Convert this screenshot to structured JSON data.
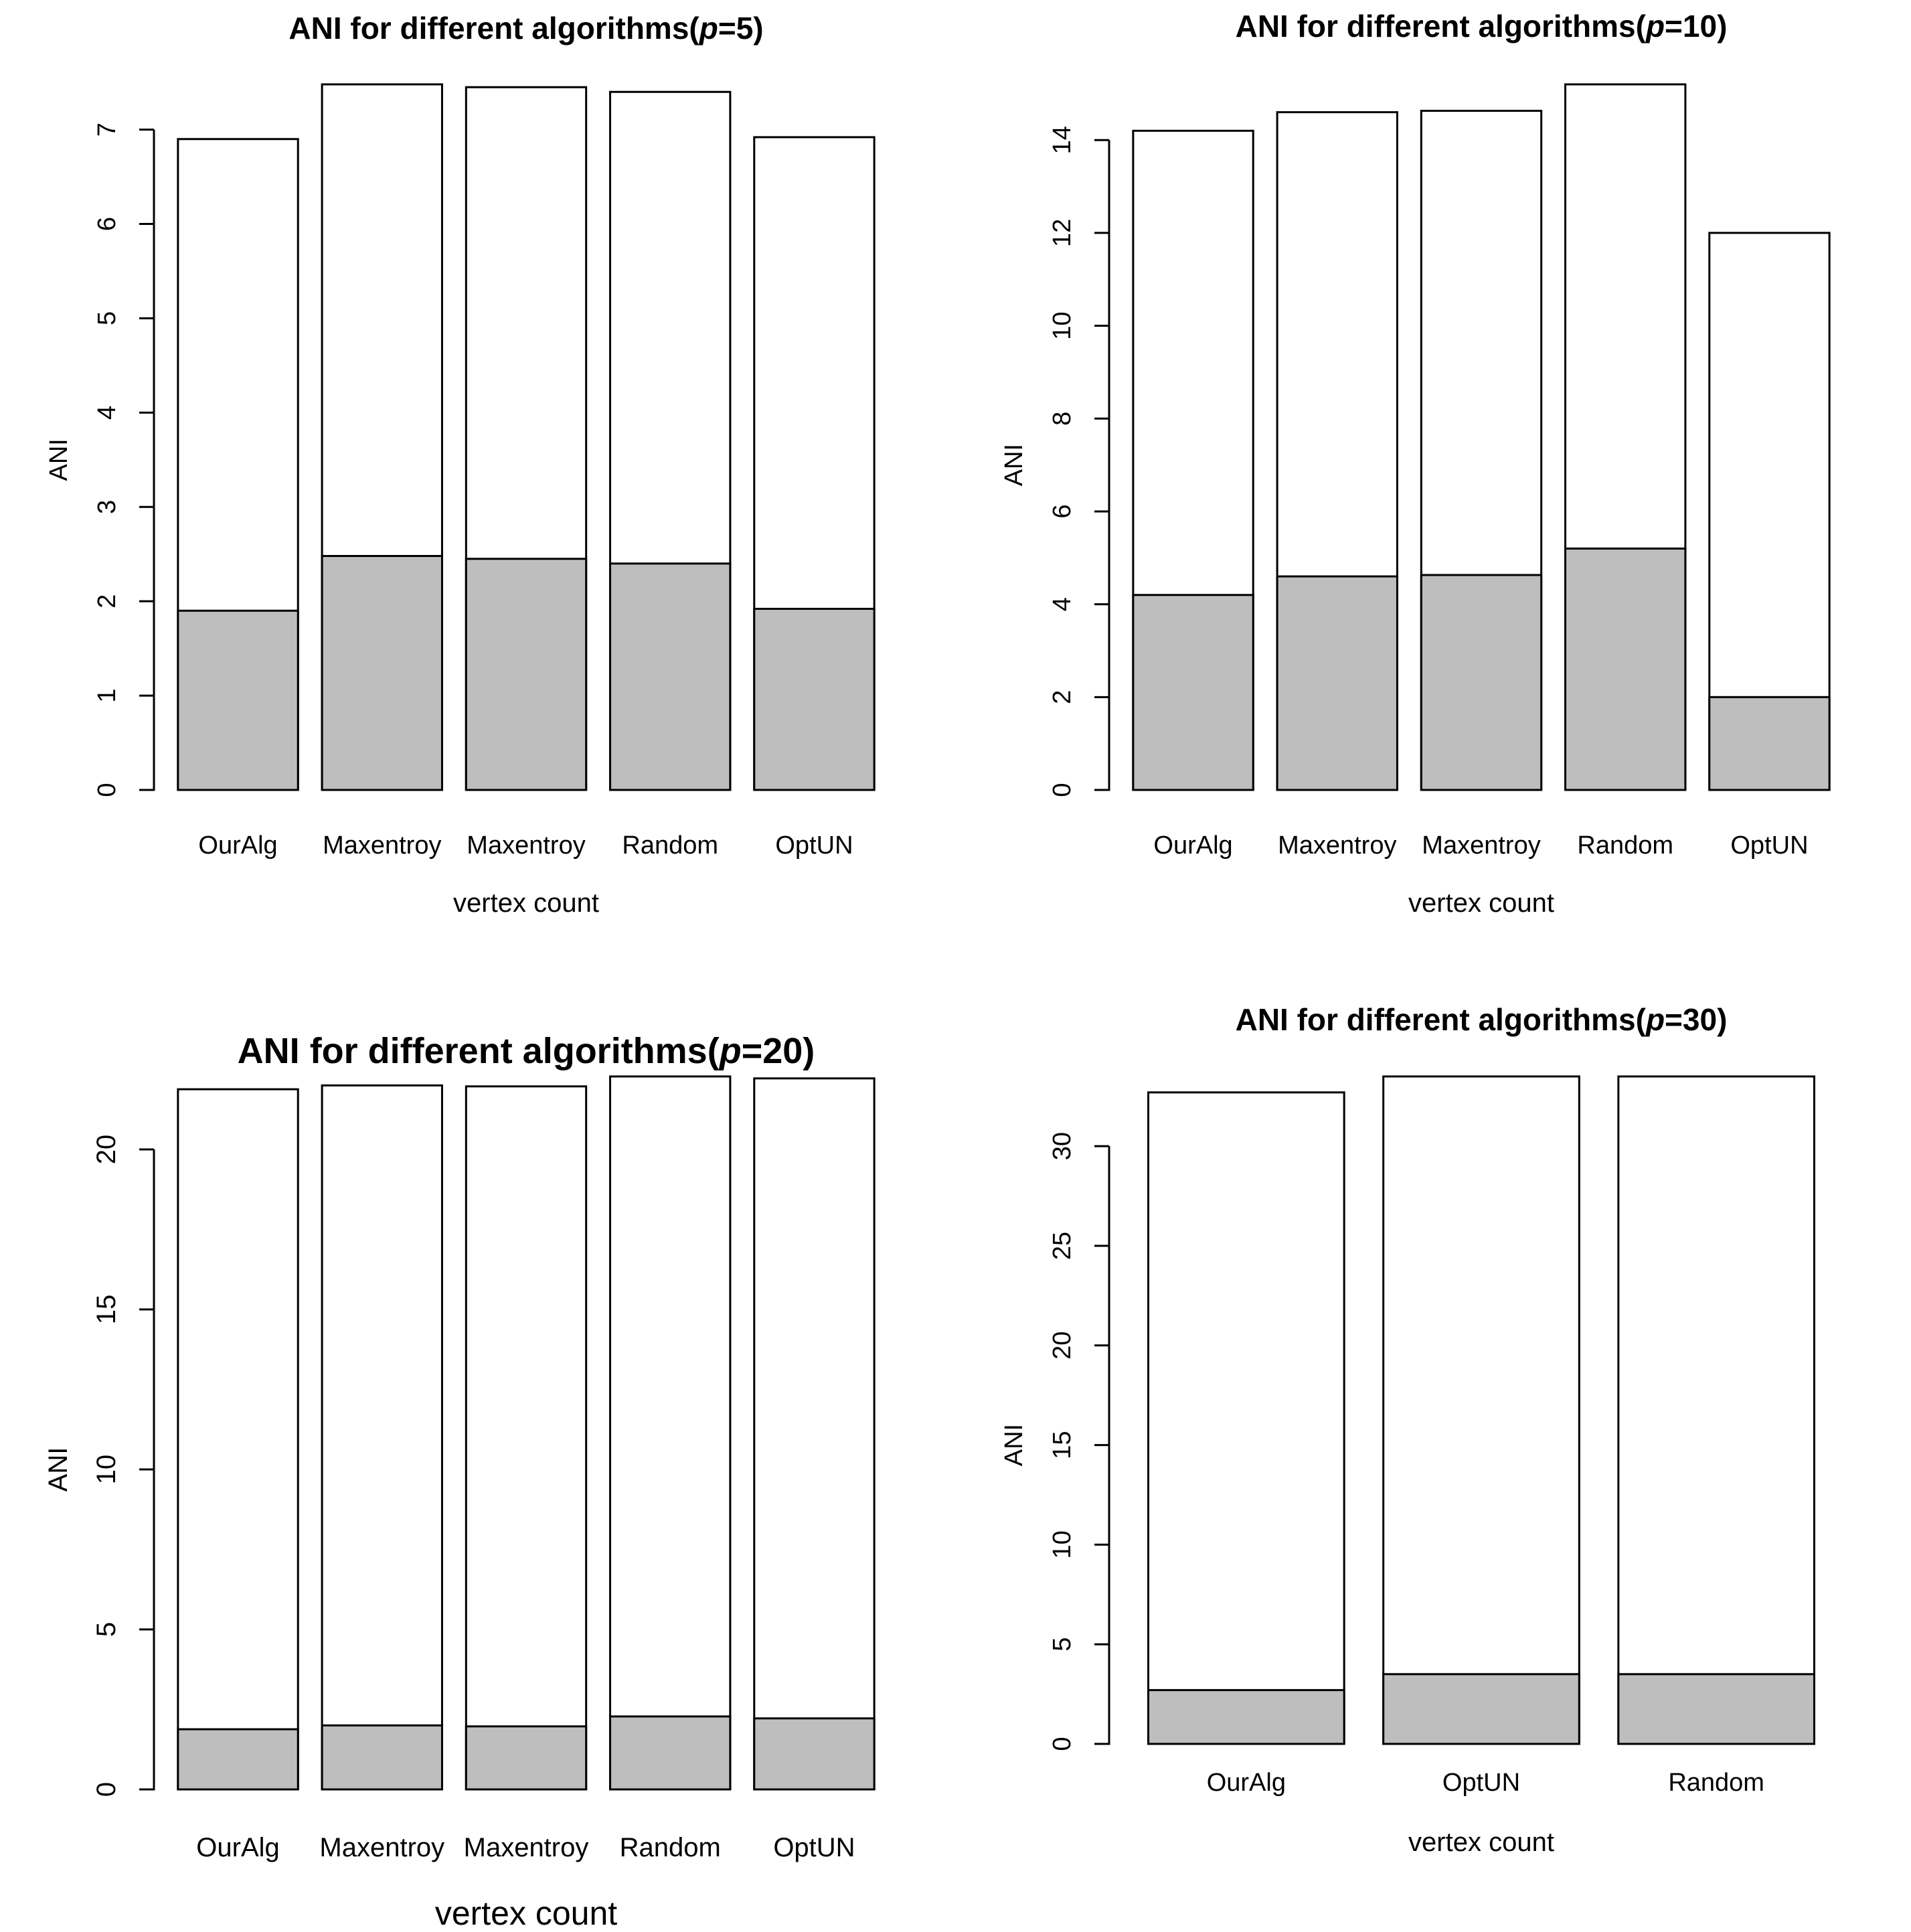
{
  "figure": {
    "background": "#ffffff",
    "rows": 2,
    "columns": 2,
    "axis_color": "#000000",
    "text_color": "#000000"
  },
  "chart_data": [
    {
      "type": "bar",
      "stacked": true,
      "p": 5,
      "title": "ANI for different algorithms(p=5)",
      "title_prefix": "ANI for different algorithms(",
      "title_italic_var": "p",
      "title_suffix": "=5)",
      "xlabel": "vertex count",
      "ylabel": "ANI",
      "categories": [
        "OurAlg",
        "Maxentroy",
        "Maxentroy",
        "Random",
        "OptUN"
      ],
      "series": [
        {
          "name": "lower gray segment",
          "color": "#bebebe",
          "values": [
            1.9,
            2.48,
            2.45,
            2.4,
            1.92
          ]
        },
        {
          "name": "upper white segment",
          "color": "#ffffff",
          "values": [
            5,
            5,
            5,
            5,
            5
          ]
        }
      ],
      "totals": [
        6.9,
        7.48,
        7.45,
        7.4,
        6.92
      ],
      "yticks": [
        0,
        1,
        2,
        3,
        4,
        5,
        6,
        7
      ],
      "ylim": [
        0,
        7.48
      ],
      "grid": false,
      "legend": "none",
      "bar_border": "#000000"
    },
    {
      "type": "bar",
      "stacked": true,
      "p": 10,
      "title": "ANI for different algorithms(p=10)",
      "title_prefix": "ANI for different algorithms(",
      "title_italic_var": "p",
      "title_suffix": "=10)",
      "xlabel": "vertex count",
      "ylabel": "ANI",
      "categories": [
        "OurAlg",
        "Maxentroy",
        "Maxentroy",
        "Random",
        "OptUN"
      ],
      "series": [
        {
          "name": "lower gray segment",
          "color": "#bebebe",
          "values": [
            4.2,
            4.6,
            4.63,
            5.2,
            2.0
          ]
        },
        {
          "name": "upper white segment",
          "color": "#ffffff",
          "values": [
            10,
            10,
            10,
            10,
            10
          ]
        }
      ],
      "totals": [
        14.2,
        14.6,
        14.63,
        15.2,
        12.0
      ],
      "yticks": [
        0,
        2,
        4,
        6,
        8,
        10,
        12,
        14
      ],
      "ylim": [
        0,
        15.2
      ],
      "grid": false,
      "legend": "none",
      "bar_border": "#000000"
    },
    {
      "type": "bar",
      "stacked": true,
      "p": 20,
      "title": "ANI for different algorithms(p=20)",
      "title_prefix": "ANI for different algorithms(",
      "title_italic_var": "p",
      "title_suffix": "=20)",
      "xlabel": "vertex count",
      "ylabel": "ANI",
      "categories": [
        "OurAlg",
        "Maxentroy",
        "Maxentroy",
        "Random",
        "OptUN"
      ],
      "series": [
        {
          "name": "lower gray segment",
          "color": "#bebebe",
          "values": [
            1.88,
            2.0,
            1.97,
            2.28,
            2.22
          ]
        },
        {
          "name": "upper white segment",
          "color": "#ffffff",
          "values": [
            20,
            20,
            20,
            20,
            20
          ]
        }
      ],
      "totals": [
        21.88,
        22.0,
        21.97,
        22.28,
        22.22
      ],
      "yticks": [
        0,
        5,
        10,
        15,
        20
      ],
      "ylim": [
        0,
        22.28
      ],
      "grid": false,
      "legend": "none",
      "bar_border": "#000000"
    },
    {
      "type": "bar",
      "stacked": true,
      "p": 30,
      "title": "ANI for different algorithms(p=30)",
      "title_prefix": "ANI for different algorithms(",
      "title_italic_var": "p",
      "title_suffix": "=30)",
      "xlabel": "vertex count",
      "ylabel": "ANI",
      "categories": [
        "OurAlg",
        "OptUN",
        "Random"
      ],
      "series": [
        {
          "name": "lower gray segment",
          "color": "#bebebe",
          "values": [
            2.7,
            3.5,
            3.5
          ]
        },
        {
          "name": "upper white segment",
          "color": "#ffffff",
          "values": [
            30,
            30,
            30
          ]
        }
      ],
      "totals": [
        32.7,
        33.5,
        33.5
      ],
      "yticks": [
        0,
        5,
        10,
        15,
        20,
        25,
        30
      ],
      "ylim": [
        0,
        33.5
      ],
      "grid": false,
      "legend": "none",
      "bar_border": "#000000"
    }
  ]
}
